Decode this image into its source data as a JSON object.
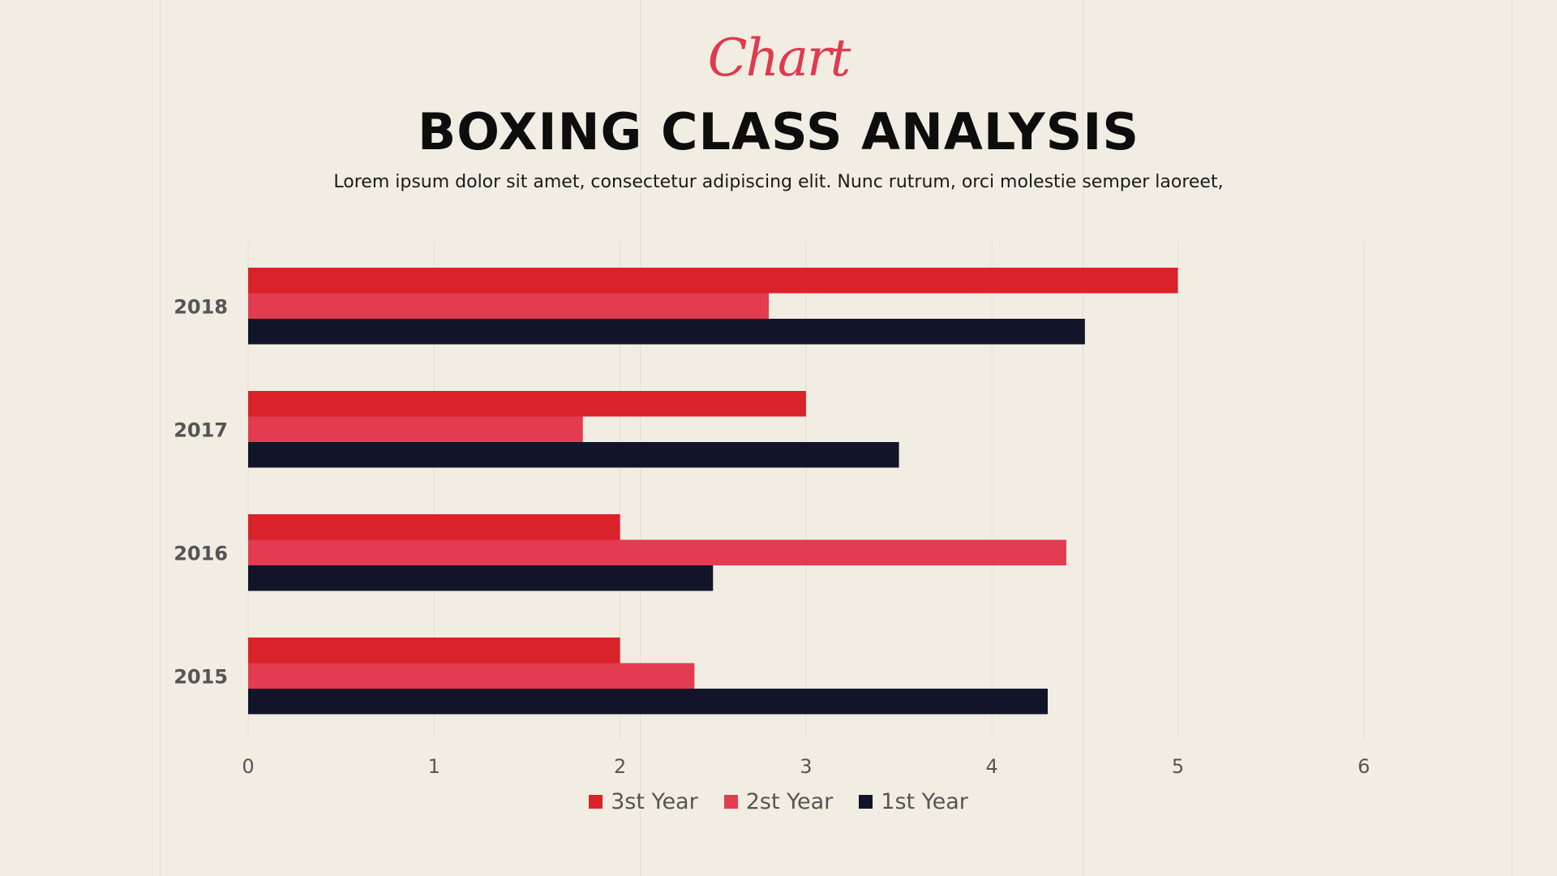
{
  "header": {
    "script_title": "Chart",
    "title": "BOXING CLASS ANALYSIS",
    "subtitle": "Lorem ipsum dolor sit amet, consectetur adipiscing elit. Nunc rutrum, orci molestie semper laoreet,"
  },
  "colors": {
    "background": "#f2ede2",
    "accent_script": "#df3a4f",
    "series_3st": "#d92229",
    "series_2st": "#e33b50",
    "series_1st": "#121529",
    "grid": "#e3ded3",
    "tick_text": "#555555"
  },
  "chart_data": {
    "type": "bar",
    "orientation": "horizontal",
    "categories": [
      "2018",
      "2017",
      "2016",
      "2015"
    ],
    "series": [
      {
        "name": "3st Year",
        "values": [
          5,
          3,
          2,
          2
        ]
      },
      {
        "name": "2st Year",
        "values": [
          2.8,
          1.8,
          4.4,
          2.4
        ]
      },
      {
        "name": "1st Year",
        "values": [
          4.5,
          3.5,
          2.5,
          4.3
        ]
      }
    ],
    "xlim": [
      0,
      6
    ],
    "xticks": [
      "0",
      "1",
      "2",
      "3",
      "4",
      "5",
      "6"
    ],
    "grid": true,
    "legend_position": "bottom"
  }
}
